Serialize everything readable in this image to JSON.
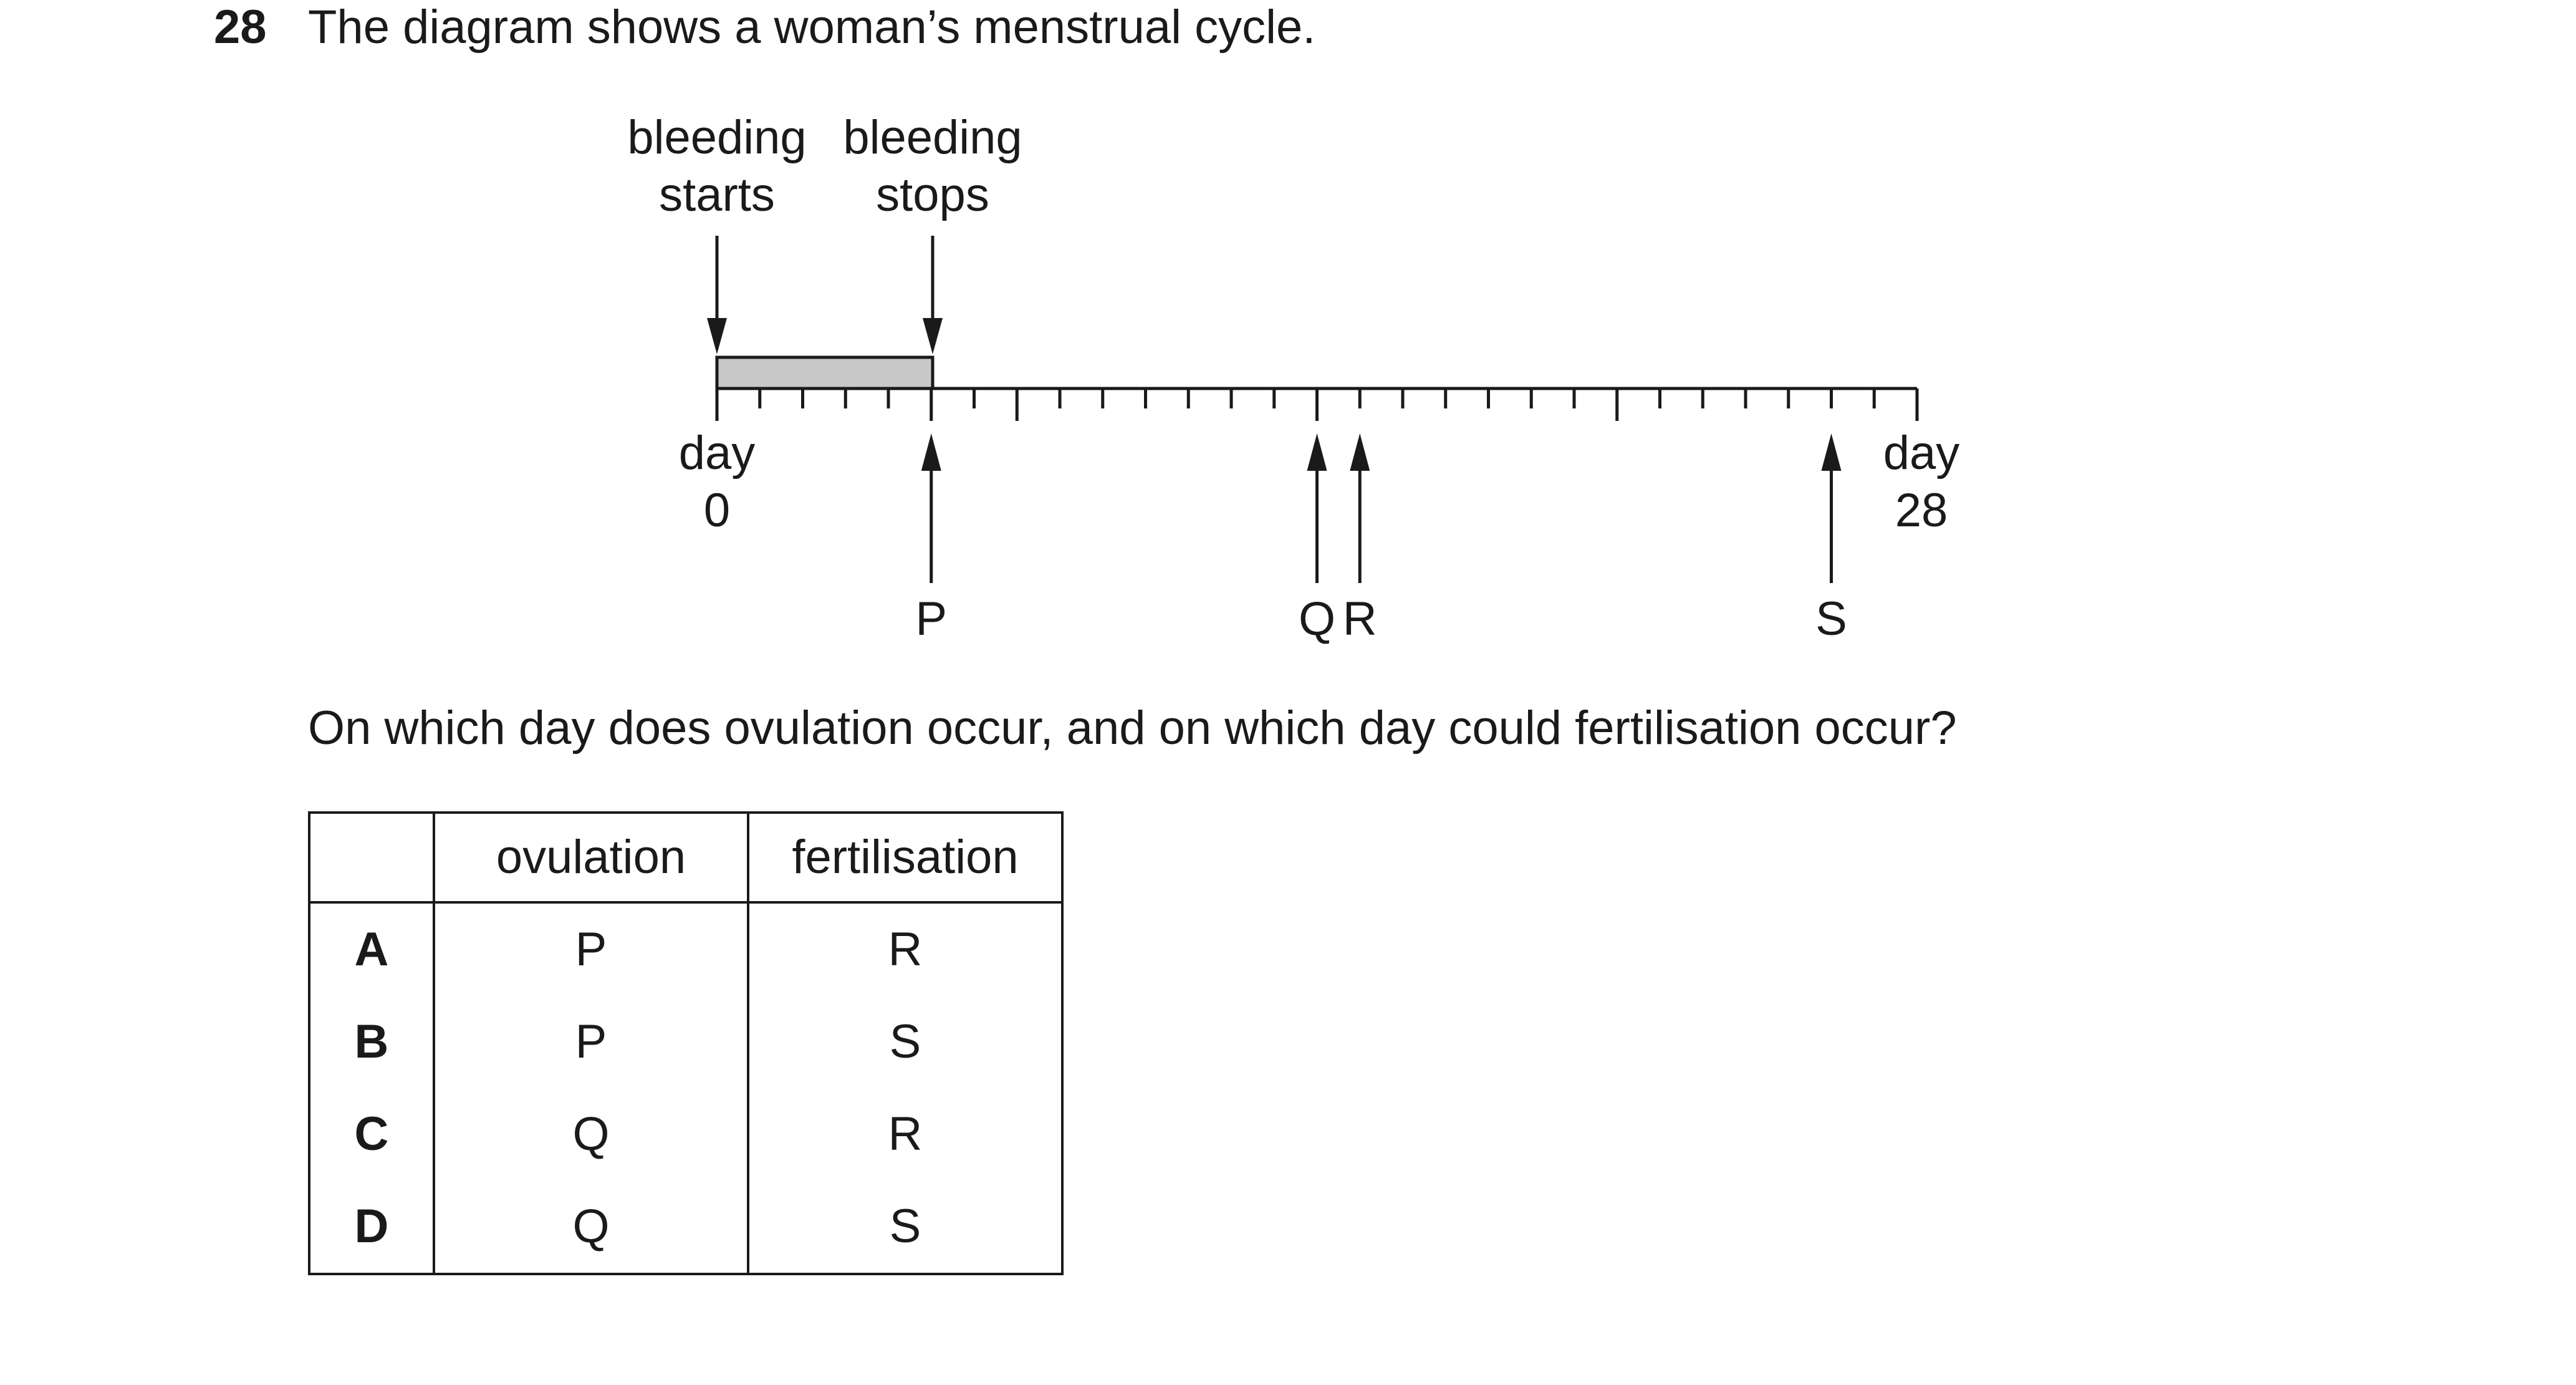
{
  "question": {
    "number": "28",
    "text": "The diagram shows a woman’s menstrual cycle.",
    "prompt": "On which day does ovulation occur, and on which day could fertilisation occur?"
  },
  "diagram": {
    "top_labels": {
      "bleeding_starts": [
        "bleeding",
        "starts"
      ],
      "bleeding_stops": [
        "bleeding",
        "stops"
      ]
    },
    "start_label": [
      "day",
      "0"
    ],
    "end_label": [
      "day",
      "28"
    ],
    "axis": {
      "min_day": 0,
      "max_day": 28
    },
    "bleeding_period_days": [
      0,
      5
    ],
    "markers": [
      {
        "label": "P",
        "day": 5
      },
      {
        "label": "Q",
        "day": 14
      },
      {
        "label": "R",
        "day": 15
      },
      {
        "label": "S",
        "day": 26
      }
    ]
  },
  "table": {
    "headers": [
      "",
      "ovulation",
      "fertilisation"
    ],
    "rows": [
      {
        "option": "A",
        "ovulation": "P",
        "fertilisation": "R"
      },
      {
        "option": "B",
        "ovulation": "P",
        "fertilisation": "S"
      },
      {
        "option": "C",
        "ovulation": "Q",
        "fertilisation": "R"
      },
      {
        "option": "D",
        "ovulation": "Q",
        "fertilisation": "S"
      }
    ]
  }
}
